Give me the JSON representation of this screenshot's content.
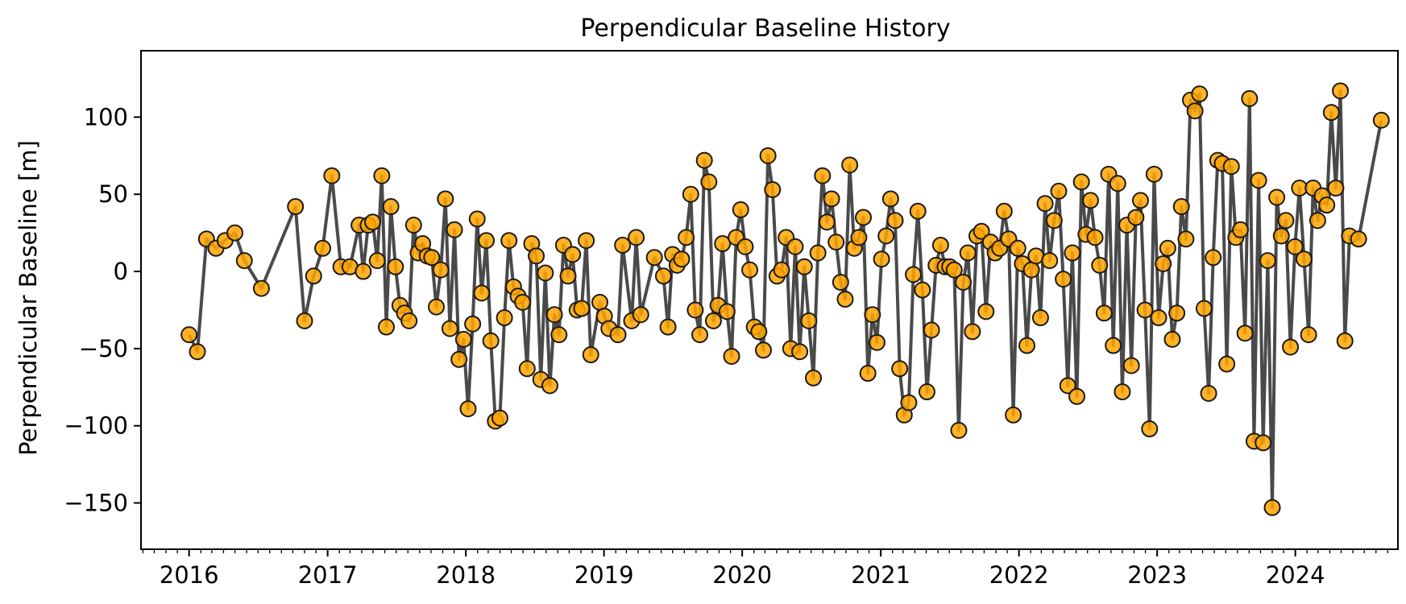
{
  "chart_data": {
    "type": "line",
    "title": "Perpendicular Baseline History",
    "xlabel": "",
    "ylabel": "Perpendicular Baseline [m]",
    "x_ticks": [
      "2016",
      "2017",
      "2018",
      "2019",
      "2020",
      "2021",
      "2022",
      "2023",
      "2024"
    ],
    "y_ticks": [
      100,
      50,
      0,
      -50,
      -100,
      -150
    ],
    "y_tick_labels": [
      "100",
      "50",
      "0",
      "−50",
      "−100",
      "−150"
    ],
    "xlim": [
      "2015-08-27",
      "2024-09-28"
    ],
    "ylim": [
      -180,
      143
    ],
    "grid": false,
    "colors": {
      "marker_fill": "#FFA500",
      "marker_edge": "#1a1a1a",
      "line": "#404040"
    },
    "series": [
      {
        "points": [
          [
            "2016-01-01",
            -41
          ],
          [
            "2016-01-23",
            -52
          ],
          [
            "2016-02-16",
            21
          ],
          [
            "2016-03-12",
            15
          ],
          [
            "2016-04-05",
            20
          ],
          [
            "2016-05-01",
            25
          ],
          [
            "2016-05-26",
            7
          ],
          [
            "2016-07-10",
            -11
          ],
          [
            "2016-10-08",
            42
          ],
          [
            "2016-11-01",
            -32
          ],
          [
            "2016-11-25",
            -3
          ],
          [
            "2016-12-19",
            15
          ],
          [
            "2017-01-12",
            62
          ],
          [
            "2017-02-05",
            3
          ],
          [
            "2017-03-01",
            3
          ],
          [
            "2017-03-25",
            30
          ],
          [
            "2017-04-05",
            0
          ],
          [
            "2017-04-18",
            30
          ],
          [
            "2017-04-30",
            32
          ],
          [
            "2017-05-12",
            7
          ],
          [
            "2017-05-24",
            62
          ],
          [
            "2017-06-05",
            -36
          ],
          [
            "2017-06-17",
            42
          ],
          [
            "2017-06-29",
            3
          ],
          [
            "2017-07-11",
            -22
          ],
          [
            "2017-07-23",
            -27
          ],
          [
            "2017-08-04",
            -32
          ],
          [
            "2017-08-16",
            30
          ],
          [
            "2017-08-28",
            12
          ],
          [
            "2017-09-09",
            18
          ],
          [
            "2017-09-21",
            10
          ],
          [
            "2017-10-03",
            9
          ],
          [
            "2017-10-15",
            -23
          ],
          [
            "2017-10-27",
            1
          ],
          [
            "2017-11-08",
            47
          ],
          [
            "2017-11-20",
            -37
          ],
          [
            "2017-12-02",
            27
          ],
          [
            "2017-12-14",
            -57
          ],
          [
            "2017-12-26",
            -44
          ],
          [
            "2018-01-07",
            -89
          ],
          [
            "2018-01-19",
            -34
          ],
          [
            "2018-01-31",
            34
          ],
          [
            "2018-02-12",
            -14
          ],
          [
            "2018-02-24",
            20
          ],
          [
            "2018-03-08",
            -45
          ],
          [
            "2018-03-20",
            -97
          ],
          [
            "2018-04-01",
            -95
          ],
          [
            "2018-04-13",
            -30
          ],
          [
            "2018-04-25",
            20
          ],
          [
            "2018-05-07",
            -10
          ],
          [
            "2018-05-19",
            -16
          ],
          [
            "2018-05-31",
            -20
          ],
          [
            "2018-06-12",
            -63
          ],
          [
            "2018-06-24",
            18
          ],
          [
            "2018-07-06",
            10
          ],
          [
            "2018-07-18",
            -70
          ],
          [
            "2018-07-30",
            -1
          ],
          [
            "2018-08-11",
            -74
          ],
          [
            "2018-08-23",
            -28
          ],
          [
            "2018-09-04",
            -41
          ],
          [
            "2018-09-16",
            17
          ],
          [
            "2018-09-28",
            -3
          ],
          [
            "2018-10-10",
            11
          ],
          [
            "2018-10-22",
            -25
          ],
          [
            "2018-11-03",
            -24
          ],
          [
            "2018-11-15",
            20
          ],
          [
            "2018-11-27",
            -54
          ],
          [
            "2018-12-21",
            -20
          ],
          [
            "2019-01-02",
            -29
          ],
          [
            "2019-01-14",
            -37
          ],
          [
            "2019-02-07",
            -41
          ],
          [
            "2019-02-19",
            17
          ],
          [
            "2019-03-15",
            -32
          ],
          [
            "2019-03-27",
            22
          ],
          [
            "2019-04-08",
            -28
          ],
          [
            "2019-05-14",
            9
          ],
          [
            "2019-06-07",
            -3
          ],
          [
            "2019-06-19",
            -36
          ],
          [
            "2019-07-01",
            11
          ],
          [
            "2019-07-13",
            4
          ],
          [
            "2019-07-25",
            8
          ],
          [
            "2019-08-06",
            22
          ],
          [
            "2019-08-18",
            50
          ],
          [
            "2019-08-30",
            -25
          ],
          [
            "2019-09-11",
            -41
          ],
          [
            "2019-09-23",
            72
          ],
          [
            "2019-10-05",
            58
          ],
          [
            "2019-10-17",
            -32
          ],
          [
            "2019-10-29",
            -22
          ],
          [
            "2019-11-10",
            18
          ],
          [
            "2019-11-22",
            -26
          ],
          [
            "2019-12-04",
            -55
          ],
          [
            "2019-12-16",
            22
          ],
          [
            "2019-12-28",
            40
          ],
          [
            "2020-01-09",
            16
          ],
          [
            "2020-01-21",
            1
          ],
          [
            "2020-02-02",
            -36
          ],
          [
            "2020-02-14",
            -39
          ],
          [
            "2020-02-26",
            -51
          ],
          [
            "2020-03-09",
            75
          ],
          [
            "2020-03-21",
            53
          ],
          [
            "2020-04-02",
            -3
          ],
          [
            "2020-04-14",
            1
          ],
          [
            "2020-04-26",
            22
          ],
          [
            "2020-05-08",
            -50
          ],
          [
            "2020-05-20",
            16
          ],
          [
            "2020-06-01",
            -52
          ],
          [
            "2020-06-13",
            3
          ],
          [
            "2020-06-25",
            -32
          ],
          [
            "2020-07-07",
            -69
          ],
          [
            "2020-07-19",
            12
          ],
          [
            "2020-07-31",
            62
          ],
          [
            "2020-08-12",
            32
          ],
          [
            "2020-08-24",
            47
          ],
          [
            "2020-09-05",
            19
          ],
          [
            "2020-09-17",
            -7
          ],
          [
            "2020-09-29",
            -18
          ],
          [
            "2020-10-11",
            69
          ],
          [
            "2020-10-23",
            15
          ],
          [
            "2020-11-04",
            22
          ],
          [
            "2020-11-16",
            35
          ],
          [
            "2020-11-28",
            -66
          ],
          [
            "2020-12-10",
            -28
          ],
          [
            "2020-12-22",
            -46
          ],
          [
            "2021-01-03",
            8
          ],
          [
            "2021-01-15",
            23
          ],
          [
            "2021-01-27",
            47
          ],
          [
            "2021-02-08",
            33
          ],
          [
            "2021-02-20",
            -63
          ],
          [
            "2021-03-04",
            -93
          ],
          [
            "2021-03-16",
            -85
          ],
          [
            "2021-03-28",
            -2
          ],
          [
            "2021-04-09",
            39
          ],
          [
            "2021-04-21",
            -12
          ],
          [
            "2021-05-03",
            -78
          ],
          [
            "2021-05-15",
            -38
          ],
          [
            "2021-05-27",
            4
          ],
          [
            "2021-06-08",
            17
          ],
          [
            "2021-06-20",
            3
          ],
          [
            "2021-07-02",
            3
          ],
          [
            "2021-07-14",
            1
          ],
          [
            "2021-07-26",
            -103
          ],
          [
            "2021-08-07",
            -7
          ],
          [
            "2021-08-19",
            12
          ],
          [
            "2021-08-31",
            -39
          ],
          [
            "2021-09-12",
            23
          ],
          [
            "2021-09-24",
            26
          ],
          [
            "2021-10-06",
            -26
          ],
          [
            "2021-10-18",
            19
          ],
          [
            "2021-10-30",
            12
          ],
          [
            "2021-11-11",
            15
          ],
          [
            "2021-11-23",
            39
          ],
          [
            "2021-12-05",
            21
          ],
          [
            "2021-12-17",
            -93
          ],
          [
            "2021-12-29",
            15
          ],
          [
            "2022-01-10",
            5
          ],
          [
            "2022-01-22",
            -48
          ],
          [
            "2022-02-03",
            1
          ],
          [
            "2022-02-15",
            10
          ],
          [
            "2022-02-27",
            -30
          ],
          [
            "2022-03-11",
            44
          ],
          [
            "2022-03-23",
            7
          ],
          [
            "2022-04-04",
            33
          ],
          [
            "2022-04-16",
            52
          ],
          [
            "2022-04-28",
            -5
          ],
          [
            "2022-05-10",
            -74
          ],
          [
            "2022-05-22",
            12
          ],
          [
            "2022-06-03",
            -81
          ],
          [
            "2022-06-15",
            58
          ],
          [
            "2022-06-27",
            24
          ],
          [
            "2022-07-09",
            46
          ],
          [
            "2022-07-21",
            22
          ],
          [
            "2022-08-02",
            4
          ],
          [
            "2022-08-14",
            -27
          ],
          [
            "2022-08-26",
            63
          ],
          [
            "2022-09-07",
            -48
          ],
          [
            "2022-09-19",
            57
          ],
          [
            "2022-10-01",
            -78
          ],
          [
            "2022-10-13",
            30
          ],
          [
            "2022-10-25",
            -61
          ],
          [
            "2022-11-06",
            35
          ],
          [
            "2022-11-18",
            46
          ],
          [
            "2022-11-30",
            -25
          ],
          [
            "2022-12-12",
            -102
          ],
          [
            "2022-12-24",
            63
          ],
          [
            "2023-01-05",
            -30
          ],
          [
            "2023-01-17",
            5
          ],
          [
            "2023-01-29",
            15
          ],
          [
            "2023-02-10",
            -44
          ],
          [
            "2023-02-22",
            -27
          ],
          [
            "2023-03-06",
            42
          ],
          [
            "2023-03-18",
            21
          ],
          [
            "2023-03-30",
            111
          ],
          [
            "2023-04-11",
            104
          ],
          [
            "2023-04-23",
            115
          ],
          [
            "2023-05-05",
            -24
          ],
          [
            "2023-05-17",
            -79
          ],
          [
            "2023-05-29",
            9
          ],
          [
            "2023-06-10",
            72
          ],
          [
            "2023-06-22",
            70
          ],
          [
            "2023-07-04",
            -60
          ],
          [
            "2023-07-16",
            68
          ],
          [
            "2023-07-28",
            22
          ],
          [
            "2023-08-09",
            27
          ],
          [
            "2023-08-21",
            -40
          ],
          [
            "2023-09-02",
            112
          ],
          [
            "2023-09-14",
            -110
          ],
          [
            "2023-09-26",
            59
          ],
          [
            "2023-10-08",
            -111
          ],
          [
            "2023-10-20",
            7
          ],
          [
            "2023-11-01",
            -153
          ],
          [
            "2023-11-13",
            48
          ],
          [
            "2023-11-25",
            23
          ],
          [
            "2023-12-07",
            33
          ],
          [
            "2023-12-19",
            -49
          ],
          [
            "2023-12-31",
            16
          ],
          [
            "2024-01-12",
            54
          ],
          [
            "2024-01-24",
            8
          ],
          [
            "2024-02-05",
            -41
          ],
          [
            "2024-02-17",
            54
          ],
          [
            "2024-02-29",
            33
          ],
          [
            "2024-03-12",
            49
          ],
          [
            "2024-03-24",
            43
          ],
          [
            "2024-04-05",
            103
          ],
          [
            "2024-04-17",
            54
          ],
          [
            "2024-04-29",
            117
          ],
          [
            "2024-05-11",
            -45
          ],
          [
            "2024-05-23",
            23
          ],
          [
            "2024-06-16",
            21
          ],
          [
            "2024-08-15",
            98
          ]
        ]
      }
    ]
  }
}
